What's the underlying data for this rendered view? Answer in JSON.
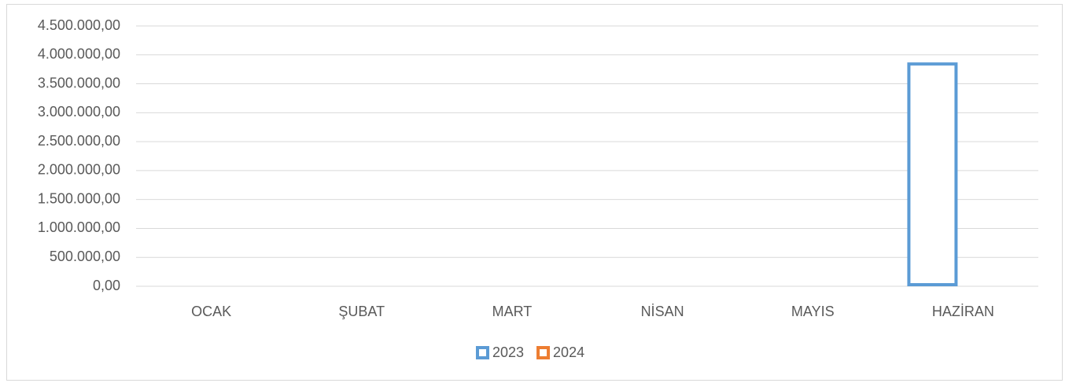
{
  "chart_data": {
    "type": "bar",
    "categories": [
      "OCAK",
      "ŞUBAT",
      "MART",
      "NİSAN",
      "MAYIS",
      "HAZİRAN"
    ],
    "series": [
      {
        "name": "2023",
        "color": "#5b9bd5",
        "values": [
          0,
          0,
          0,
          0,
          0,
          3870000
        ]
      },
      {
        "name": "2024",
        "color": "#ed7d31",
        "values": [
          0,
          0,
          0,
          0,
          0,
          0
        ]
      }
    ],
    "ylim": [
      0,
      4500000
    ],
    "yticks": [
      {
        "value": 0,
        "label": "0,00"
      },
      {
        "value": 500000,
        "label": "500.000,00"
      },
      {
        "value": 1000000,
        "label": "1.000.000,00"
      },
      {
        "value": 1500000,
        "label": "1.500.000,00"
      },
      {
        "value": 2000000,
        "label": "2.000.000,00"
      },
      {
        "value": 2500000,
        "label": "2.500.000,00"
      },
      {
        "value": 3000000,
        "label": "3.000.000,00"
      },
      {
        "value": 3500000,
        "label": "3.500.000,00"
      },
      {
        "value": 4000000,
        "label": "4.000.000,00"
      },
      {
        "value": 4500000,
        "label": "4.500.000,00"
      }
    ],
    "grid": true,
    "legend": "bottom"
  }
}
